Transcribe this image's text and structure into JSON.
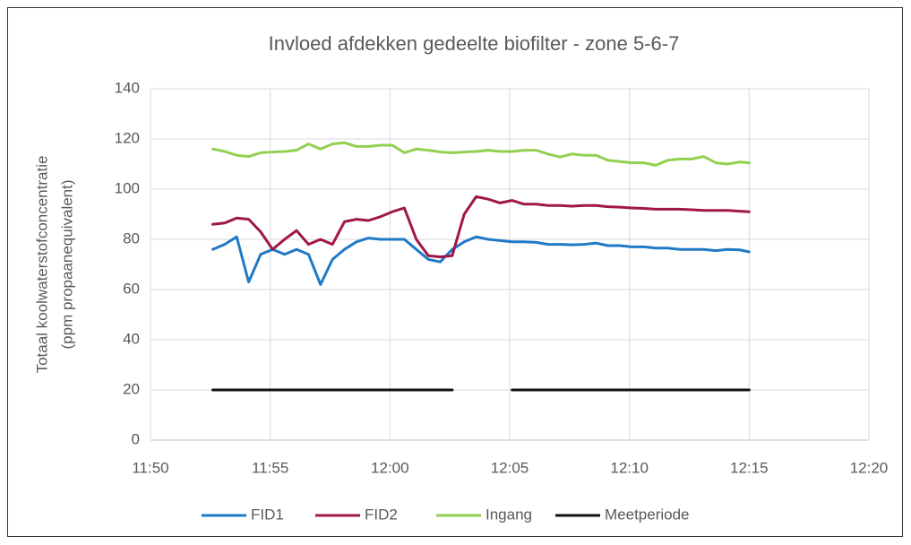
{
  "chart_data": {
    "type": "line",
    "title": "Invloed afdekken gedeelte biofilter - zone 5-6-7",
    "y_label": [
      "Totaal koolwaterstofconcentratie",
      "(ppm propaanequivalent)"
    ],
    "x": [
      712.6,
      713.1,
      713.6,
      714.1,
      714.6,
      715.1,
      715.6,
      716.1,
      716.6,
      717.1,
      717.6,
      718.1,
      718.6,
      719.1,
      719.6,
      720.1,
      720.6,
      721.1,
      721.6,
      722.1,
      722.6,
      723.1,
      723.6,
      724.1,
      724.6,
      725.1,
      725.6,
      726.1,
      726.6,
      727.1,
      727.6,
      728.1,
      728.6,
      729.1,
      729.6,
      730.1,
      730.6,
      731.1,
      731.6,
      732.1,
      732.6,
      733.1,
      733.6,
      734.1,
      734.6,
      735.0
    ],
    "series": [
      {
        "name": "FID1",
        "color": "#2079c7",
        "values": [
          76,
          78,
          81,
          63,
          74,
          76,
          74,
          76,
          74,
          62,
          72,
          76,
          79,
          80.5,
          80,
          80,
          80,
          76,
          72,
          71,
          76,
          79,
          81,
          80,
          79.5,
          79,
          79,
          78.8,
          78,
          78,
          77.8,
          78,
          78.5,
          77.5,
          77.5,
          77,
          77,
          76.5,
          76.5,
          76,
          76,
          76,
          75.5,
          76,
          75.8,
          75
        ]
      },
      {
        "name": "FID2",
        "color": "#a0174a",
        "values": [
          86,
          86.5,
          88.5,
          88,
          83,
          76,
          80,
          83.5,
          78,
          80,
          78,
          87,
          88,
          87.5,
          89,
          91,
          92.5,
          80,
          73.5,
          73,
          73.5,
          90,
          97,
          96,
          94.5,
          95.5,
          94,
          94,
          93.5,
          93.5,
          93.2,
          93.5,
          93.5,
          93,
          92.8,
          92.5,
          92.3,
          92,
          92,
          92,
          91.8,
          91.5,
          91.5,
          91.5,
          91.2,
          91
        ]
      },
      {
        "name": "Ingang",
        "color": "#92d050",
        "values": [
          116,
          115,
          113.5,
          113,
          114.5,
          114.8,
          115,
          115.5,
          118,
          116,
          118,
          118.5,
          117,
          117,
          117.5,
          117.5,
          114.5,
          116,
          115.5,
          114.8,
          114.5,
          114.8,
          115,
          115.5,
          115,
          115,
          115.5,
          115.5,
          114,
          112.8,
          114,
          113.5,
          113.5,
          111.5,
          111,
          110.5,
          110.5,
          109.5,
          111.5,
          112,
          112,
          113,
          110.5,
          110,
          110.8,
          110.5
        ]
      },
      {
        "name": "Meetperiode",
        "color": "#111111",
        "values": [
          20,
          20,
          20,
          20,
          20,
          20,
          20,
          20,
          20,
          20,
          20,
          20,
          20,
          20,
          20,
          20,
          20,
          20,
          20,
          20,
          20,
          null,
          null,
          null,
          null,
          20,
          20,
          20,
          20,
          20,
          20,
          20,
          20,
          20,
          20,
          20,
          20,
          20,
          20,
          20,
          20,
          20,
          20,
          20,
          20,
          20
        ]
      }
    ],
    "xlim": [
      710,
      740
    ],
    "xticks": [
      {
        "value": 710,
        "label": "11:50"
      },
      {
        "value": 715,
        "label": "11:55"
      },
      {
        "value": 720,
        "label": "12:00"
      },
      {
        "value": 725,
        "label": "12:05"
      },
      {
        "value": 730,
        "label": "12:10"
      },
      {
        "value": 735,
        "label": "12:15"
      },
      {
        "value": 740,
        "label": "12:20"
      }
    ],
    "ylim": [
      0,
      140
    ],
    "yticks": [
      0,
      20,
      40,
      60,
      80,
      100,
      120,
      140
    ],
    "grid": true,
    "legend": "bottom"
  }
}
